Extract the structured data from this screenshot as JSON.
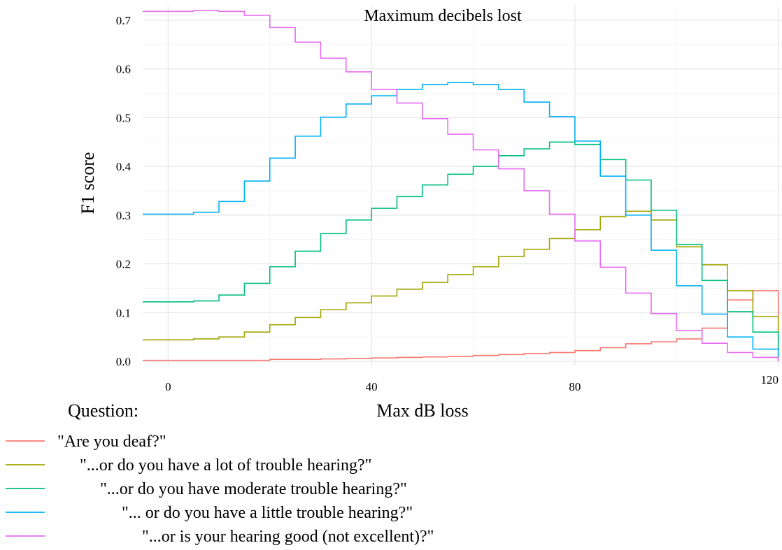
{
  "chart_data": {
    "type": "line",
    "step": true,
    "title": "Maximum decibels lost",
    "xlabel": "Max dB loss",
    "ylabel": "F1 score",
    "xlim": [
      -5,
      121
    ],
    "ylim": [
      -0.01,
      0.73
    ],
    "xticks": [
      0,
      40,
      80,
      120
    ],
    "yticks": [
      0.0,
      0.1,
      0.2,
      0.3,
      0.4,
      0.5,
      0.6,
      0.7
    ],
    "ytick_labels": [
      "0.0",
      "0.1",
      "0.2",
      "0.3",
      "0.4",
      "0.5",
      "0.6",
      "0.7"
    ],
    "grid": true,
    "legend_title": "Question:",
    "legend_position": "bottom-left",
    "x": [
      -5,
      0,
      5,
      10,
      15,
      20,
      25,
      30,
      35,
      40,
      45,
      50,
      55,
      60,
      65,
      70,
      75,
      80,
      85,
      90,
      95,
      100,
      105,
      110,
      115,
      120
    ],
    "series": [
      {
        "name": "\"Are you deaf?\"",
        "color": "#F8766D",
        "values": [
          0.002,
          0.002,
          0.002,
          0.002,
          0.002,
          0.004,
          0.004,
          0.005,
          0.006,
          0.007,
          0.008,
          0.009,
          0.01,
          0.012,
          0.014,
          0.016,
          0.018,
          0.022,
          0.028,
          0.036,
          0.04,
          0.046,
          0.068,
          0.126,
          0.145,
          0.0
        ]
      },
      {
        "name": "\"...or do you have a lot of trouble hearing?\"",
        "color": "#A3A500",
        "values": [
          0.044,
          0.044,
          0.046,
          0.05,
          0.06,
          0.075,
          0.09,
          0.106,
          0.12,
          0.134,
          0.148,
          0.162,
          0.178,
          0.194,
          0.215,
          0.23,
          0.252,
          0.27,
          0.297,
          0.308,
          0.29,
          0.235,
          0.198,
          0.145,
          0.092,
          0.0
        ]
      },
      {
        "name": "\"...or do you have moderate trouble hearing?\"",
        "color": "#00BF7D",
        "values": [
          0.122,
          0.122,
          0.124,
          0.136,
          0.16,
          0.194,
          0.226,
          0.262,
          0.29,
          0.314,
          0.338,
          0.362,
          0.384,
          0.4,
          0.422,
          0.436,
          0.45,
          0.445,
          0.414,
          0.372,
          0.31,
          0.24,
          0.166,
          0.102,
          0.06,
          0.0
        ]
      },
      {
        "name": "\"... or do you have a little trouble hearing?\"",
        "color": "#00B0F6",
        "values": [
          0.302,
          0.302,
          0.306,
          0.328,
          0.37,
          0.417,
          0.462,
          0.501,
          0.528,
          0.545,
          0.558,
          0.568,
          0.572,
          0.568,
          0.558,
          0.532,
          0.502,
          0.452,
          0.38,
          0.3,
          0.228,
          0.155,
          0.097,
          0.05,
          0.025,
          0.0
        ]
      },
      {
        "name": "\"...or is your hearing good (not excellent)?\"",
        "color": "#E76BF3",
        "values": [
          0.718,
          0.718,
          0.72,
          0.718,
          0.71,
          0.685,
          0.655,
          0.622,
          0.594,
          0.558,
          0.53,
          0.498,
          0.466,
          0.434,
          0.395,
          0.35,
          0.302,
          0.247,
          0.193,
          0.14,
          0.098,
          0.063,
          0.037,
          0.018,
          0.008,
          0.0
        ]
      }
    ]
  }
}
